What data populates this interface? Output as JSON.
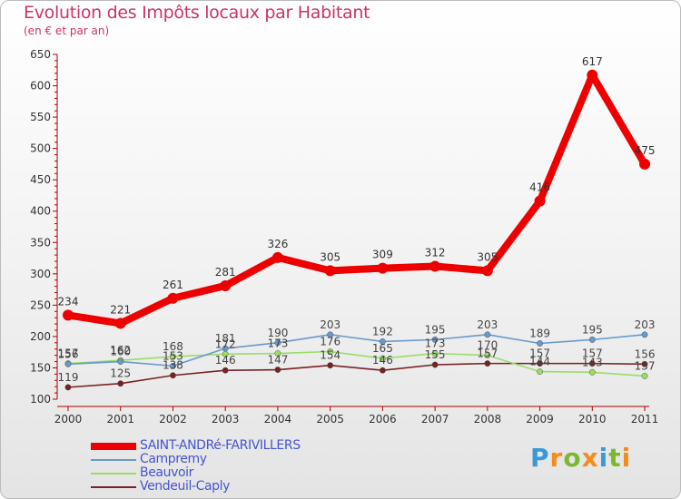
{
  "title": "Evolution des Impôts locaux par Habitant",
  "subtitle": "(en € et par an)",
  "logo": {
    "letters": [
      "P",
      "r",
      "o",
      "x",
      "i",
      "t",
      "i"
    ],
    "colors": [
      "#3a9ad9",
      "#f28c1c",
      "#7cb82f",
      "#f28c1c",
      "#3a9ad9",
      "#7cb82f",
      "#f28c1c"
    ]
  },
  "chart_data": {
    "type": "line",
    "title": "Evolution des Impôts locaux par Habitant",
    "subtitle": "(en € et par an)",
    "xlabel": "",
    "ylabel": "",
    "x": [
      "2000",
      "2001",
      "2002",
      "2003",
      "2004",
      "2005",
      "2006",
      "2007",
      "2008",
      "2009",
      "2010",
      "2011"
    ],
    "ylim": [
      100,
      650
    ],
    "yticks": [
      100,
      150,
      200,
      250,
      300,
      350,
      400,
      450,
      500,
      550,
      600,
      650
    ],
    "yticklabels": [
      "100",
      "150",
      "200",
      "250",
      "300",
      "350",
      "400",
      "450",
      "500",
      "550",
      "600",
      "650"
    ],
    "grid": false,
    "legend_position": "bottom-left",
    "series": [
      {
        "name": "SAINT-ANDRé-FARIVILLERS",
        "color": "#ee0000",
        "values": [
          234,
          221,
          261,
          281,
          326,
          305,
          309,
          312,
          305,
          416,
          617,
          475
        ],
        "labels": [
          "234",
          "221",
          "261",
          "281",
          "326",
          "305",
          "309",
          "312",
          "305",
          "416",
          "617",
          "475"
        ]
      },
      {
        "name": "Campremy",
        "color": "#6699cc",
        "values": [
          156,
          160,
          153,
          181,
          190,
          203,
          192,
          195,
          203,
          189,
          195,
          203
        ],
        "labels": [
          "156",
          "160",
          "153",
          "181",
          "190",
          "203",
          "192",
          "195",
          "203",
          "189",
          "195",
          "203"
        ]
      },
      {
        "name": "Beauvoir",
        "color": "#99dd66",
        "values": [
          157,
          162,
          168,
          172,
          173,
          176,
          165,
          173,
          170,
          144,
          143,
          137
        ],
        "labels": [
          "157",
          "162",
          "168",
          "172",
          "173",
          "176",
          "165",
          "173",
          "170",
          "144",
          "143",
          "137"
        ]
      },
      {
        "name": "Vendeuil-Caply",
        "color": "#772222",
        "values": [
          119,
          125,
          138,
          146,
          147,
          154,
          146,
          155,
          157,
          157,
          157,
          156
        ],
        "labels": [
          "119",
          "125",
          "138",
          "146",
          "147",
          "154",
          "146",
          "155",
          "157",
          "157",
          "157",
          "156"
        ]
      }
    ]
  }
}
